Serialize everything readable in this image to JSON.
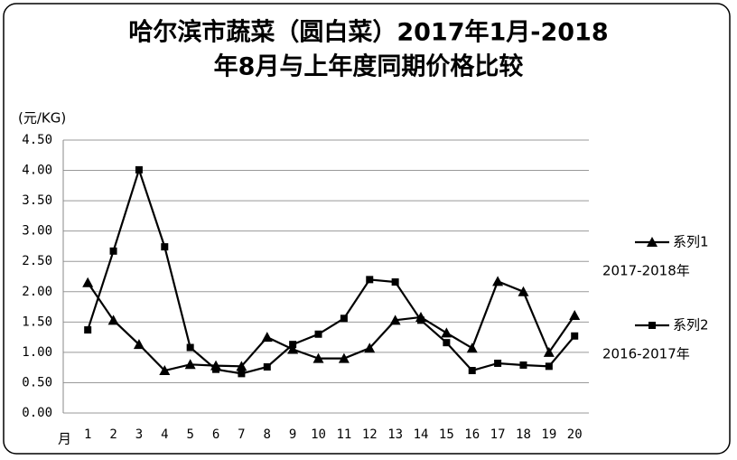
{
  "chart_data": {
    "type": "line",
    "title": [
      "哈尔滨市蔬菜（圆白菜）2017年1月-2018",
      "年8月与上年度同期价格比较"
    ],
    "y_label": "(元/KG)",
    "x_label": "月",
    "categories": [
      "1",
      "2",
      "3",
      "4",
      "5",
      "6",
      "7",
      "8",
      "9",
      "10",
      "11",
      "12",
      "13",
      "14",
      "15",
      "16",
      "17",
      "18",
      "19",
      "20"
    ],
    "series": [
      {
        "name": "系列1",
        "color": "#000000",
        "marker": "triangle",
        "note": "2017-2018年",
        "values": [
          2.15,
          1.53,
          1.13,
          0.7,
          0.8,
          0.78,
          0.77,
          1.25,
          1.05,
          0.9,
          0.9,
          1.07,
          1.53,
          1.58,
          1.32,
          1.07,
          2.17,
          2.0,
          1.0,
          1.61
        ]
      },
      {
        "name": "系列2",
        "color": "#000000",
        "marker": "square",
        "note": "2016-2017年",
        "values": [
          1.37,
          2.67,
          4.01,
          2.74,
          1.08,
          0.72,
          0.65,
          0.76,
          1.13,
          1.3,
          1.56,
          2.2,
          2.16,
          1.53,
          1.16,
          0.7,
          0.82,
          0.79,
          0.77,
          1.27
        ]
      }
    ],
    "ylim": [
      0,
      4.5
    ],
    "yticks": [
      {
        "value": 0,
        "label": "0.00"
      },
      {
        "value": 0.5,
        "label": "0.50"
      },
      {
        "value": 1,
        "label": "1.00"
      },
      {
        "value": 1.5,
        "label": "1.50"
      },
      {
        "value": 2,
        "label": "2.00"
      },
      {
        "value": 2.5,
        "label": "2.50"
      },
      {
        "value": 3,
        "label": "3.00"
      },
      {
        "value": 3.5,
        "label": "3.50"
      },
      {
        "value": 4,
        "label": "4.00"
      },
      {
        "value": 4.5,
        "label": "4.50"
      }
    ],
    "grid": true,
    "legend": "right"
  }
}
